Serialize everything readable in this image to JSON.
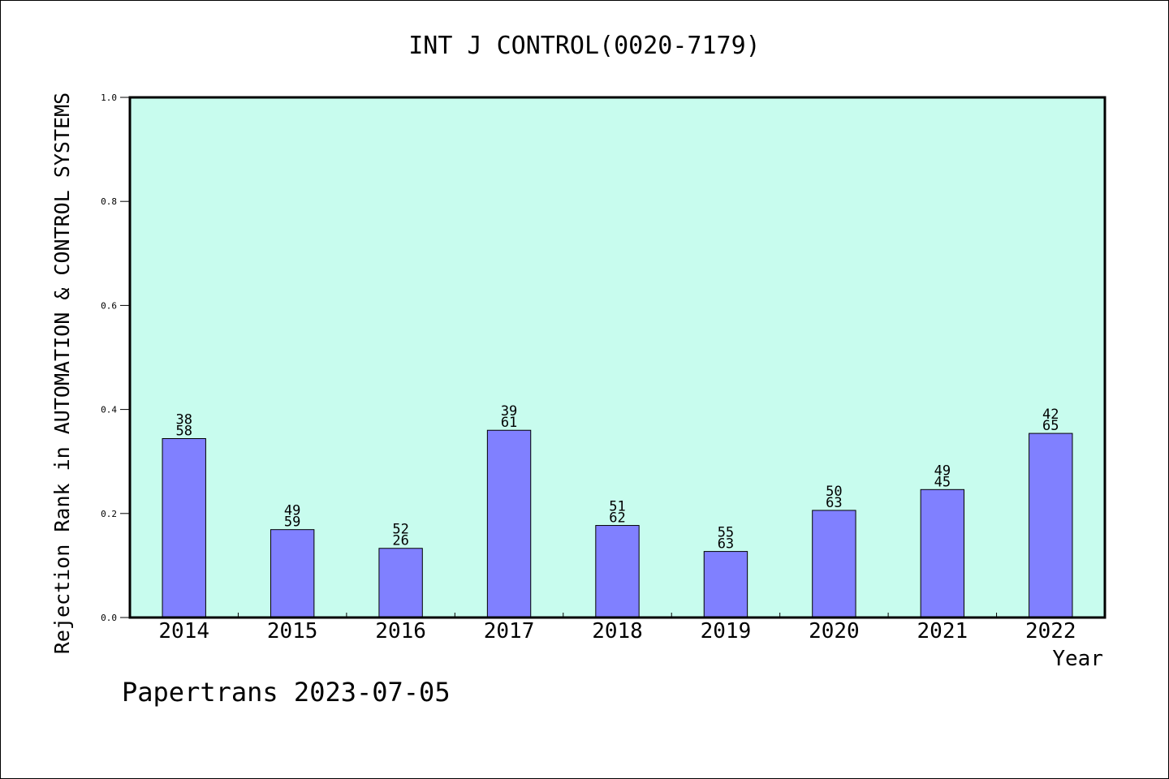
{
  "chart_data": {
    "type": "bar",
    "title": "INT J CONTROL(0020-7179)",
    "xlabel": "Year",
    "ylabel": "Rejection Rank in AUTOMATION & CONTROL SYSTEMS",
    "ylim": [
      0,
      1.0
    ],
    "yticks": [
      "0.0",
      "0.2",
      "0.4",
      "0.6",
      "0.8",
      "1.0"
    ],
    "categories": [
      "2014",
      "2015",
      "2016",
      "2017",
      "2018",
      "2019",
      "2020",
      "2021",
      "2022"
    ],
    "values": [
      0.344,
      0.169,
      0.133,
      0.36,
      0.177,
      0.127,
      0.206,
      0.246,
      0.354
    ],
    "labels_top": [
      "38",
      "49",
      "52",
      "39",
      "51",
      "55",
      "50",
      "49",
      "42"
    ],
    "labels_bottom": [
      "58",
      "59",
      "26",
      "61",
      "62",
      "63",
      "63",
      "45",
      "65"
    ],
    "grid": false,
    "legend": "none"
  },
  "colors": {
    "plot_background": "#c8fcee",
    "bar_fill": "#8080ff",
    "bar_stroke": "#000000",
    "axis": "#000000"
  },
  "footer": {
    "credit": "Papertrans 2023-07-05"
  }
}
